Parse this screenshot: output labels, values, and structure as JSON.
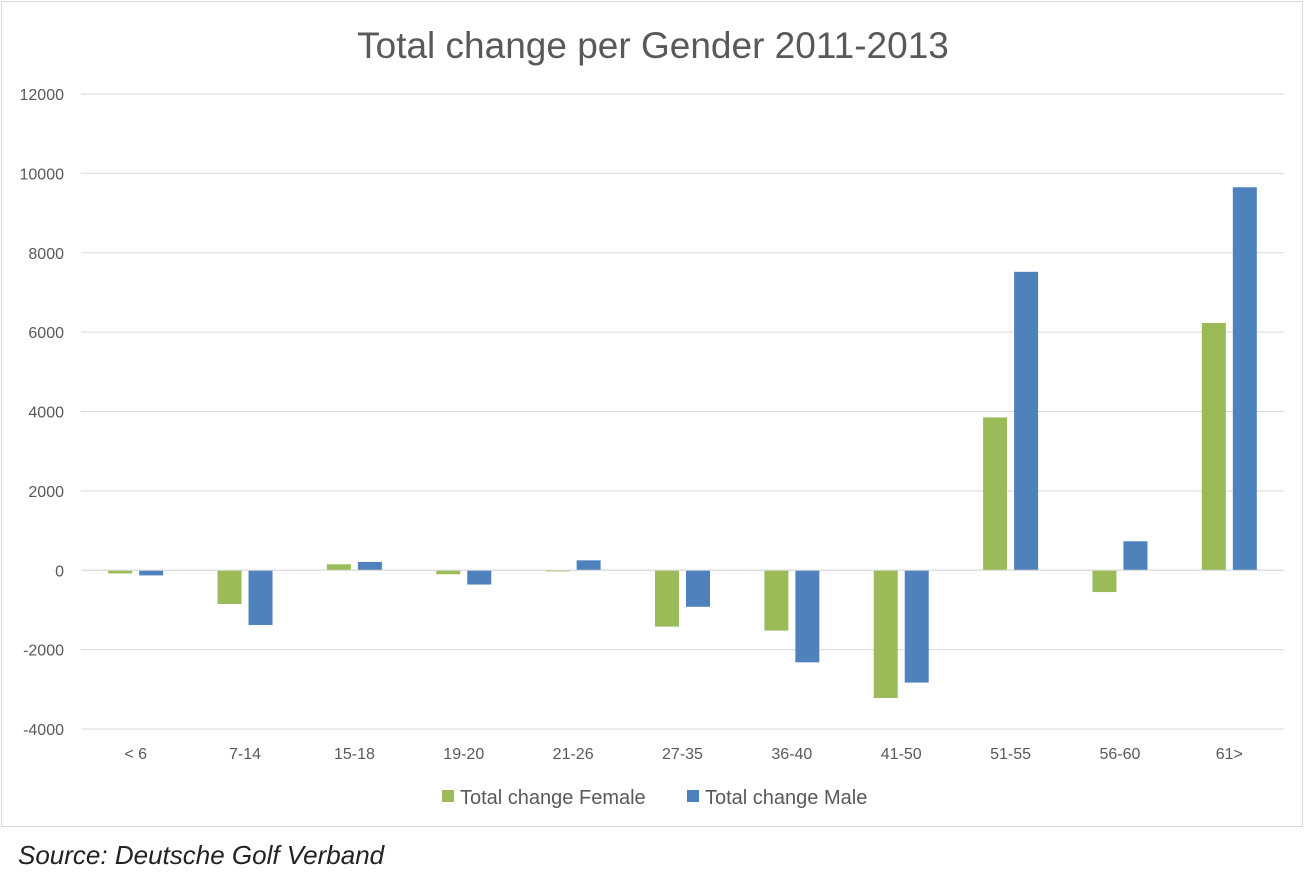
{
  "chart_data": {
    "type": "bar",
    "title": "Total change per Gender 2011-2013",
    "xlabel": "",
    "ylabel": "",
    "categories": [
      "< 6",
      "7-14",
      "15-18",
      "19-20",
      "21-26",
      "27-35",
      "36-40",
      "41-50",
      "51-55",
      "56-60",
      "61>"
    ],
    "series": [
      {
        "name": "Total change Female",
        "color": "#9bbb59",
        "values": [
          -80,
          -850,
          150,
          -100,
          -30,
          -1420,
          -1520,
          -3220,
          3850,
          -550,
          6230
        ]
      },
      {
        "name": "Total change Male",
        "color": "#4f81bd",
        "values": [
          -130,
          -1380,
          210,
          -360,
          250,
          -920,
          -2320,
          -2830,
          7520,
          730,
          9650
        ]
      }
    ],
    "ylim": [
      -4000,
      12000
    ],
    "yticks": [
      -4000,
      -2000,
      0,
      2000,
      4000,
      6000,
      8000,
      10000,
      12000
    ],
    "grid": true,
    "legend_position": "bottom"
  },
  "source": "Source: Deutsche Golf Verband"
}
